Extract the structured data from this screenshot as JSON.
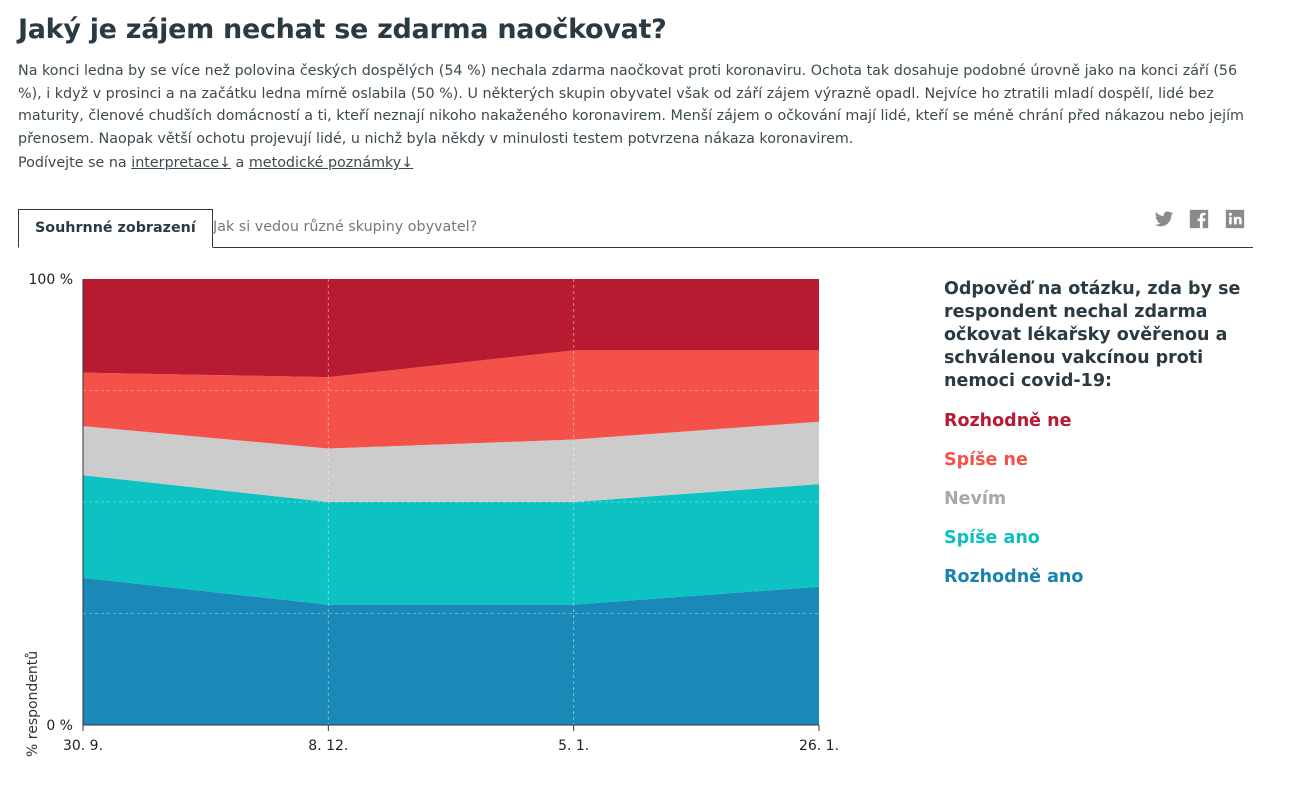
{
  "page": {
    "title": "Jaký je zájem nechat se zdarma naočkovat?",
    "intro": "Na konci ledna by se více než polovina českých dospělých (54 %) nechala zdarma naočkovat proti koronaviru. Ochota tak dosahuje podobné úrovně jako na konci září (56 %), i když v prosinci a na začátku ledna mírně oslabila (50 %). U některých skupin obyvatel však od září zájem výrazně opadl. Nejvíce ho ztratili mladí dospělí, lidé bez maturity, členové chudších domácností a ti, kteří neznají nikoho nakaženého koronavirem. Menší zájem o očkování mají lidé, kteří se méně chrání před nákazou nebo jejím přenosem. Naopak větší ochotu projevují lidé, u nichž byla někdy v minulosti testem potvrzena nákaza koronavirem.",
    "links_prefix": "Podívejte se na",
    "link_interpretace": "interpretace↓",
    "links_and": "a",
    "link_metodicke": "metodické poznámky↓"
  },
  "tabs": [
    {
      "label": "Souhrnné zobrazení",
      "active": true
    },
    {
      "label": "Jak si vedou různé skupiny obyvatel?",
      "active": false
    }
  ],
  "share": {
    "icons": [
      "twitter-icon",
      "facebook-icon",
      "linkedin-icon"
    ],
    "color": "#8a8a8a"
  },
  "chart_data": {
    "type": "area",
    "stacked": true,
    "x": [
      "30. 9.",
      "8. 12.",
      "5. 1.",
      "26. 1."
    ],
    "ylabel": "% respondentů",
    "ylim": [
      0,
      100
    ],
    "yticks": [
      "0 %",
      "100 %"
    ],
    "grid": true,
    "series": [
      {
        "name": "Rozhodně ano",
        "color": "#1a89b8",
        "values": [
          33,
          27,
          27,
          31
        ]
      },
      {
        "name": "Spíše ano",
        "color": "#0dc2c2",
        "values": [
          23,
          23,
          23,
          23
        ]
      },
      {
        "name": "Nevím",
        "color": "#cccccc",
        "values": [
          11,
          12,
          14,
          14
        ]
      },
      {
        "name": "Spíše ne",
        "color": "#f3514a",
        "values": [
          12,
          16,
          20,
          16
        ]
      },
      {
        "name": "Rozhodně ne",
        "color": "#b71a31",
        "values": [
          21,
          22,
          16,
          16
        ]
      }
    ]
  },
  "legend": {
    "title": "Odpověď na otázku, zda by se respondent nechal zdarma očkovat lékařsky ověřenou a schválenou vakcínou proti nemoci covid-19:",
    "items": [
      {
        "label": "Rozhodně ne",
        "color": "#b71a31"
      },
      {
        "label": "Spíše ne",
        "color": "#f3514a"
      },
      {
        "label": "Nevím",
        "color": "#a8a8a8"
      },
      {
        "label": "Spíše ano",
        "color": "#0dbfbf"
      },
      {
        "label": "Rozhodně ano",
        "color": "#1a82b3"
      }
    ]
  }
}
